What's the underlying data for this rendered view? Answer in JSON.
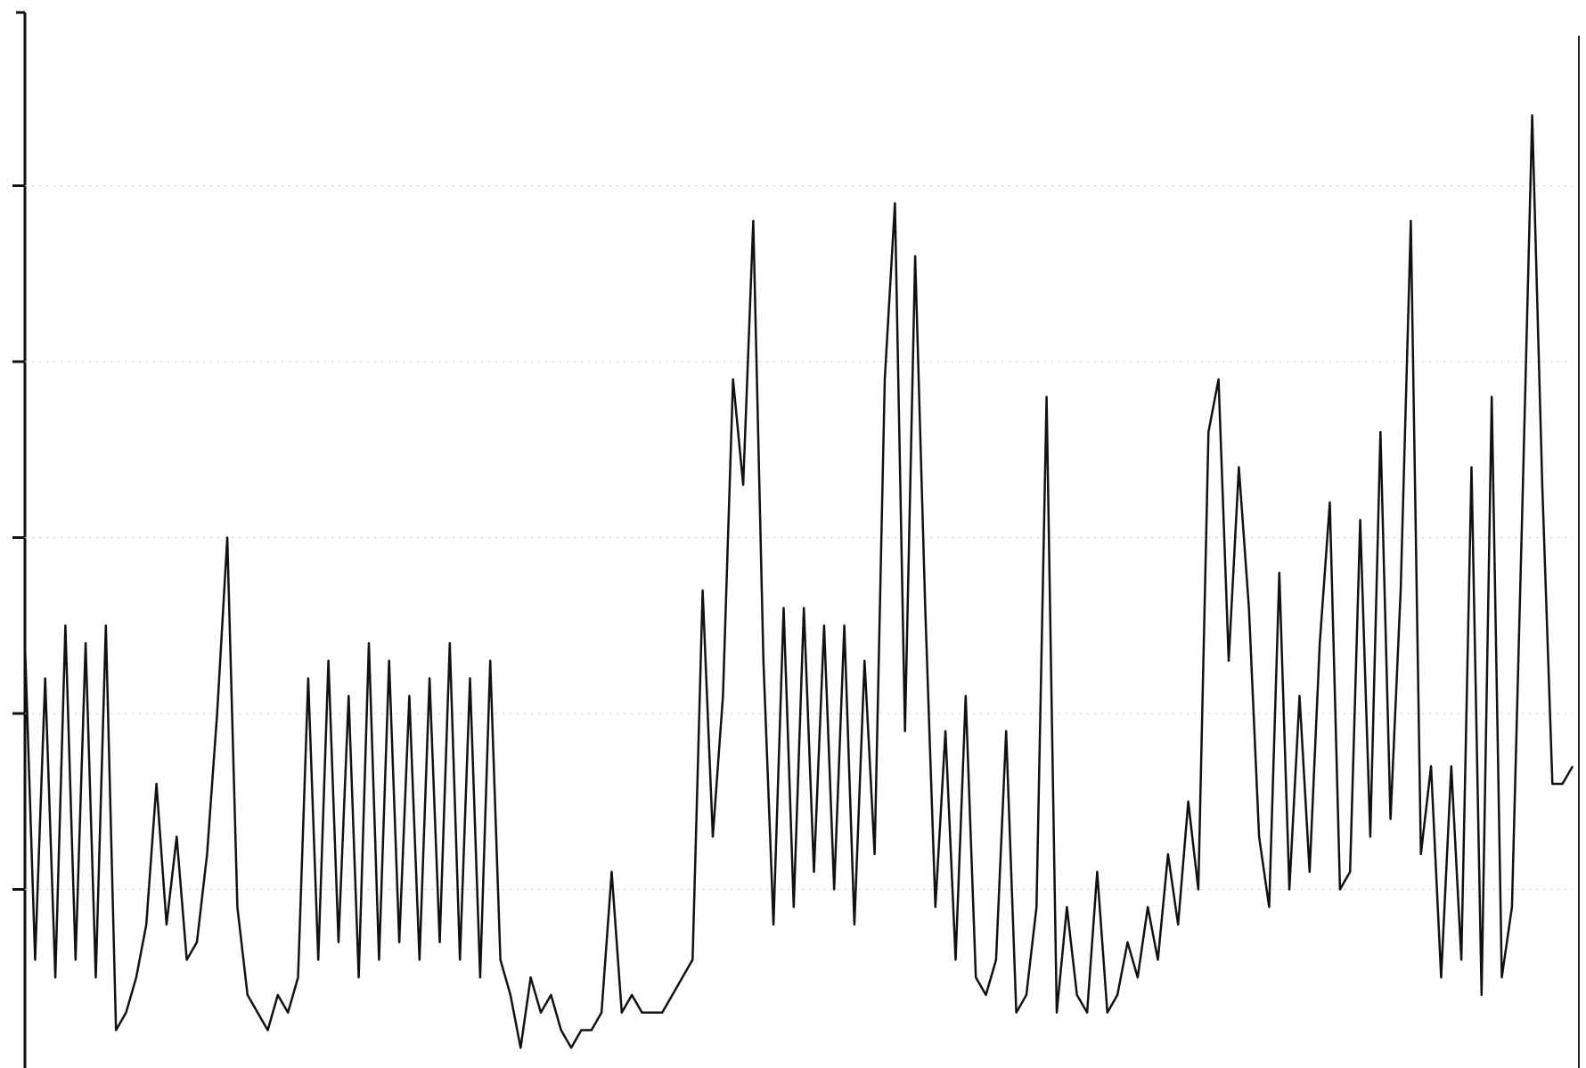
{
  "chart_data": {
    "type": "line",
    "x": [
      0,
      1,
      2,
      3,
      4,
      5,
      6,
      7,
      8,
      9,
      10,
      11,
      12,
      13,
      14,
      15,
      16,
      17,
      18,
      19,
      20,
      21,
      22,
      23,
      24,
      25,
      26,
      27,
      28,
      29,
      30,
      31,
      32,
      33,
      34,
      35,
      36,
      37,
      38,
      39,
      40,
      41,
      42,
      43,
      44,
      45,
      46,
      47,
      48,
      49,
      50,
      51,
      52,
      53,
      54,
      55,
      56,
      57,
      58,
      59,
      60,
      61,
      62,
      63,
      64,
      65,
      66,
      67,
      68,
      69,
      70,
      71,
      72,
      73,
      74,
      75,
      76,
      77,
      78,
      79,
      80,
      81,
      82,
      83,
      84,
      85,
      86,
      87,
      88,
      89,
      90,
      91,
      92,
      93,
      94,
      95,
      96,
      97,
      98,
      99,
      100,
      101,
      102,
      103,
      104,
      105,
      106,
      107,
      108,
      109,
      110,
      111,
      112,
      113,
      114,
      115,
      116,
      117,
      118,
      119,
      120,
      121,
      122,
      123,
      124,
      125,
      126,
      127,
      128,
      129,
      130,
      131,
      132,
      133,
      134,
      135,
      136,
      137,
      138,
      139,
      140,
      141,
      142,
      143,
      144,
      145,
      146,
      147,
      148,
      149,
      150,
      151,
      152,
      153
    ],
    "values": [
      2.4,
      0.6,
      2.2,
      0.5,
      2.5,
      0.6,
      2.4,
      0.5,
      2.5,
      0.2,
      0.3,
      0.5,
      0.8,
      1.6,
      0.8,
      1.3,
      0.6,
      0.7,
      1.2,
      2.0,
      3.0,
      0.9,
      0.4,
      0.3,
      0.2,
      0.4,
      0.3,
      0.5,
      2.2,
      0.6,
      2.3,
      0.7,
      2.1,
      0.5,
      2.4,
      0.6,
      2.3,
      0.7,
      2.1,
      0.6,
      2.2,
      0.7,
      2.4,
      0.6,
      2.2,
      0.5,
      2.3,
      0.6,
      0.4,
      0.1,
      0.5,
      0.3,
      0.4,
      0.2,
      0.1,
      0.2,
      0.2,
      0.3,
      1.1,
      0.3,
      0.4,
      0.3,
      0.3,
      0.3,
      0.4,
      0.5,
      0.6,
      2.7,
      1.3,
      2.1,
      3.9,
      3.3,
      4.8,
      2.3,
      0.8,
      2.6,
      0.9,
      2.6,
      1.1,
      2.5,
      1.0,
      2.5,
      0.8,
      2.3,
      1.2,
      3.9,
      4.9,
      1.9,
      4.6,
      2.6,
      0.9,
      1.9,
      0.6,
      2.1,
      0.5,
      0.4,
      0.6,
      1.9,
      0.3,
      0.4,
      0.9,
      3.8,
      0.3,
      0.9,
      0.4,
      0.3,
      1.1,
      0.3,
      0.4,
      0.7,
      0.5,
      0.9,
      0.6,
      1.2,
      0.8,
      1.5,
      1.0,
      3.6,
      3.9,
      2.3,
      3.4,
      2.6,
      1.3,
      0.9,
      2.8,
      1.0,
      2.1,
      1.1,
      2.4,
      3.2,
      1.0,
      1.1,
      3.1,
      1.3,
      3.6,
      1.4,
      2.7,
      4.8,
      1.2,
      1.7,
      0.5,
      1.7,
      0.6,
      3.4,
      0.4,
      3.8,
      0.5,
      0.9,
      3.1,
      5.4,
      3.3,
      1.6,
      1.6,
      1.7
    ],
    "color": "#111111",
    "xlim": [
      0,
      153
    ],
    "ylim": [
      0,
      6
    ],
    "yticks": [
      1,
      2,
      3,
      4,
      5
    ],
    "grid": true
  }
}
